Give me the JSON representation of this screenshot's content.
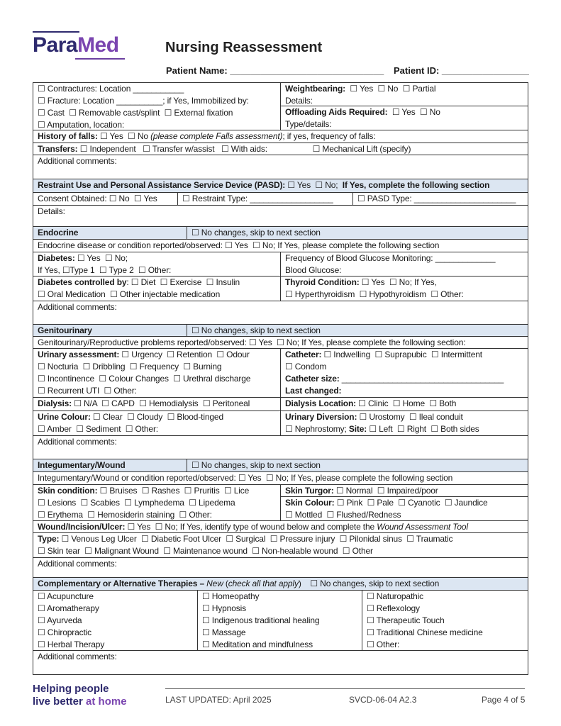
{
  "logo": {
    "part1": "Para",
    "part2": "Med"
  },
  "header": {
    "title": "Nursing Reassessment",
    "patient_name_label": "Patient Name: ",
    "patient_name_blank": "______________________________",
    "patient_id_label": "Patient ID: ",
    "patient_id_blank": "_________________"
  },
  "colors": {
    "header_bg": "#dce6f2",
    "brand_dark": "#2e2a6e",
    "brand_purple": "#7a45b0"
  },
  "cells": [
    {
      "lines": [
        [
          [
            "☐ Contractures: Location ___________",
            ""
          ]
        ],
        [
          [
            "☐ Fracture: Location __________; if Yes, Immobilized by:",
            ""
          ]
        ],
        [
          [
            "☐ Cast  ☐ Removable cast/splint  ☐ External fixation",
            ""
          ]
        ],
        [
          [
            "☐ Amputation, location:",
            ""
          ]
        ]
      ]
    },
    {
      "lines": [
        [
          [
            "Weightbearing:",
            "b"
          ],
          [
            "  ☐ Yes  ☐ No  ☐ Partial",
            ""
          ]
        ],
        [
          [
            "Details:",
            ""
          ]
        ]
      ]
    },
    {
      "lines": [
        [
          [
            "Offloading Aids Required:",
            "b"
          ],
          [
            "  ☐ Yes  ☐ No",
            ""
          ]
        ],
        [
          [
            "Type/details:",
            ""
          ]
        ]
      ]
    },
    {
      "lines": [
        [
          [
            "History of falls:",
            "b"
          ],
          [
            " ☐ Yes  ☐ No ",
            ""
          ],
          [
            "(please complete Falls assessment)",
            "i"
          ],
          [
            "; if yes, frequency of falls:",
            ""
          ]
        ]
      ]
    },
    {
      "lines": [
        [
          [
            "Transfers:",
            "b"
          ],
          [
            " ☐ Independent   ☐ Transfer w/assist   ☐ With aids:                    ☐ Mechanical Lift (specify)",
            ""
          ]
        ]
      ]
    },
    {
      "lines": [
        [
          [
            "Additional comments:",
            ""
          ]
        ]
      ]
    },
    {
      "lines": [
        [
          [
            "Restraint Use and Personal Assistance Service Device (PASD):",
            "b"
          ],
          [
            " ☐ Yes  ☐ No;  ",
            ""
          ],
          [
            "If Yes, complete the following section",
            "b"
          ]
        ]
      ]
    },
    {
      "lines": [
        [
          [
            "Consent Obtained: ☐ No  ☐ Yes",
            ""
          ]
        ]
      ]
    },
    {
      "lines": [
        [
          [
            "☐ Restraint Type: __________________",
            ""
          ]
        ]
      ]
    },
    {
      "lines": [
        [
          [
            "☐ PASD Type: ______________________",
            ""
          ]
        ]
      ]
    },
    {
      "lines": [
        [
          [
            "Details:",
            ""
          ]
        ]
      ]
    },
    {
      "lines": [
        [
          [
            "Endocrine",
            "b"
          ]
        ]
      ]
    },
    {
      "lines": [
        [
          [
            "☐ No changes, skip to next section",
            ""
          ]
        ]
      ]
    },
    {
      "lines": [
        [
          [
            "Endocrine disease or condition reported/observed: ☐ Yes  ☐ No; If Yes, please complete the following section",
            ""
          ]
        ]
      ]
    },
    {
      "lines": [
        [
          [
            "Diabetes:",
            "b"
          ],
          [
            " ☐ Yes  ☐ No;",
            ""
          ]
        ],
        [
          [
            "If Yes, ☐Type 1  ☐ Type 2  ☐ Other:",
            ""
          ]
        ]
      ]
    },
    {
      "lines": [
        [
          [
            "Frequency of Blood Glucose Monitoring: _____________",
            ""
          ]
        ],
        [
          [
            "Blood Glucose:",
            ""
          ]
        ]
      ]
    },
    {
      "lines": [
        [
          [
            "Diabetes controlled by",
            "b"
          ],
          [
            ": ☐ Diet  ☐ Exercise  ☐ Insulin",
            ""
          ]
        ],
        [
          [
            "☐ Oral Medication  ☐ Other injectable medication",
            ""
          ]
        ]
      ]
    },
    {
      "lines": [
        [
          [
            "Thyroid Condition:",
            "b"
          ],
          [
            " ☐ Yes  ☐ No; If Yes,",
            ""
          ]
        ],
        [
          [
            "☐ Hyperthyroidism  ☐ Hypothyroidism  ☐ Other:",
            ""
          ]
        ]
      ]
    },
    {
      "lines": [
        [
          [
            "Additional comments:",
            ""
          ]
        ]
      ]
    },
    {
      "lines": [
        [
          [
            "Genitourinary",
            "b"
          ]
        ]
      ]
    },
    {
      "lines": [
        [
          [
            "☐ No changes, skip to next section",
            ""
          ]
        ]
      ]
    },
    {
      "lines": [
        [
          [
            "Genitourinary/Reproductive problems reported/observed: ☐ Yes  ☐ No; If Yes, please complete the following section:",
            ""
          ]
        ]
      ]
    },
    {
      "lines": [
        [
          [
            "Urinary assessment:",
            "b"
          ],
          [
            " ☐ Urgency  ☐ Retention  ☐ Odour",
            ""
          ]
        ],
        [
          [
            "☐ Nocturia  ☐ Dribbling  ☐ Frequency  ☐ Burning",
            ""
          ]
        ],
        [
          [
            "☐ Incontinence  ☐ Colour Changes  ☐ Urethral discharge",
            ""
          ]
        ],
        [
          [
            "☐ Recurrent UTI  ☐ Other:",
            ""
          ]
        ]
      ]
    },
    {
      "lines": [
        [
          [
            "Catheter:",
            "b"
          ],
          [
            " ☐ Indwelling  ☐ Suprapubic  ☐ Intermittent",
            ""
          ]
        ],
        [
          [
            "☐ Condom",
            ""
          ]
        ],
        [
          [
            "Catheter size:",
            "b"
          ],
          [
            " ___________________________________",
            ""
          ]
        ],
        [
          [
            "Last changed:",
            "b"
          ]
        ]
      ]
    },
    {
      "lines": [
        [
          [
            "Dialysis:",
            "b"
          ],
          [
            " ☐ N/A  ☐ CAPD  ☐ Hemodialysis  ☐ Peritoneal",
            ""
          ]
        ]
      ]
    },
    {
      "lines": [
        [
          [
            "Dialysis Location:",
            "b"
          ],
          [
            " ☐ Clinic  ☐ Home  ☐ Both",
            ""
          ]
        ]
      ]
    },
    {
      "lines": [
        [
          [
            "Urine Colour:",
            "b"
          ],
          "",
          [
            " ☐ Clear  ☐ Cloudy  ☐ Blood-tinged",
            ""
          ]
        ],
        [
          [
            "☐ Amber  ☐ Sediment  ☐ Other:",
            ""
          ]
        ]
      ]
    },
    {
      "lines": [
        [
          [
            "Urinary Diversion:",
            "b"
          ],
          [
            " ☐ Urostomy  ☐ Ileal conduit",
            ""
          ]
        ],
        [
          [
            "☐ Nephrostomy; ",
            ""
          ],
          [
            "Site:",
            "b"
          ],
          [
            " ☐ Left  ☐ Right  ☐ Both sides",
            ""
          ]
        ]
      ]
    },
    {
      "lines": [
        [
          [
            "Additional comments:",
            ""
          ]
        ]
      ]
    },
    {
      "lines": [
        [
          [
            "Integumentary/Wound",
            "b"
          ]
        ]
      ]
    },
    {
      "lines": [
        [
          [
            "☐ No changes, skip to next section",
            ""
          ]
        ]
      ]
    },
    {
      "lines": [
        [
          [
            "Integumentary/Wound or condition reported/observed: ☐ Yes  ☐ No; If Yes, please complete the following section",
            ""
          ]
        ]
      ]
    },
    {
      "lines": [
        [
          [
            "Skin condition:",
            "b"
          ],
          [
            " ☐ Bruises  ☐ Rashes  ☐ Pruritis  ☐ Lice",
            ""
          ]
        ],
        [
          [
            "☐ Lesions  ☐ Scabies  ☐ Lymphedema  ☐ Lipedema",
            ""
          ]
        ],
        [
          [
            "☐ Erythema  ☐ Hemosiderin staining  ☐ Other:",
            ""
          ]
        ]
      ]
    },
    {
      "lines": [
        [
          [
            "Skin Turgor:",
            "b"
          ],
          [
            " ☐ Normal  ☐ Impaired/poor",
            ""
          ]
        ]
      ]
    },
    {
      "lines": [
        [
          [
            "Skin Colour:",
            "b"
          ],
          [
            " ☐ Pink  ☐ Pale  ☐ Cyanotic  ☐ Jaundice",
            ""
          ]
        ],
        [
          [
            "☐ Mottled  ☐ Flushed/Redness",
            ""
          ]
        ]
      ]
    },
    {
      "lines": [
        [
          [
            "Wound/Incision/Ulcer:",
            "b"
          ],
          [
            " ☐ Yes  ☐ No; If Yes, identify type of wound below and complete the ",
            ""
          ],
          [
            "Wound Assessment Tool",
            "i"
          ]
        ]
      ]
    },
    {
      "lines": [
        [
          [
            "Type:",
            "b"
          ],
          [
            " ☐ Venous Leg Ulcer  ☐ Diabetic Foot Ulcer  ☐ Surgical  ☐ Pressure injury  ☐ Pilonidal sinus  ☐ Traumatic",
            ""
          ]
        ],
        [
          [
            "☐ Skin tear  ☐ Malignant Wound  ☐ Maintenance wound  ☐ Non-healable wound  ☐ Other",
            ""
          ]
        ]
      ]
    },
    {
      "lines": [
        [
          [
            "Additional comments:",
            ""
          ]
        ]
      ]
    },
    {
      "lines": [
        [
          [
            "Complementary or Alternative Therapies – ",
            "b"
          ],
          [
            "New",
            "i"
          ],
          [
            " (",
            ""
          ],
          [
            "check all that apply",
            "i"
          ],
          [
            ")    ☐ No changes, skip to next section",
            ""
          ]
        ]
      ]
    },
    {
      "lines": [
        [
          [
            "☐ Acupuncture",
            ""
          ]
        ],
        [
          [
            "☐ Aromatherapy",
            ""
          ]
        ],
        [
          [
            "☐ Ayurveda",
            ""
          ]
        ],
        [
          [
            "☐ Chiropractic",
            ""
          ]
        ],
        [
          [
            "☐ Herbal Therapy",
            ""
          ]
        ]
      ]
    },
    {
      "lines": [
        [
          [
            "☐ Homeopathy",
            ""
          ]
        ],
        [
          [
            "☐ Hypnosis",
            ""
          ]
        ],
        [
          [
            "☐ Indigenous traditional healing",
            ""
          ]
        ],
        [
          [
            "☐ Massage",
            ""
          ]
        ],
        [
          [
            "☐ Meditation and mindfulness",
            ""
          ]
        ]
      ]
    },
    {
      "lines": [
        [
          [
            "☐ Naturopathic",
            ""
          ]
        ],
        [
          [
            "☐ Reflexology",
            ""
          ]
        ],
        [
          [
            "☐ Therapeutic Touch",
            ""
          ]
        ],
        [
          [
            "☐ Traditional Chinese medicine",
            ""
          ]
        ],
        [
          [
            "☐ Other:",
            ""
          ]
        ]
      ]
    },
    {
      "lines": [
        [
          [
            "Additional comments:",
            ""
          ]
        ]
      ]
    }
  ],
  "footer": {
    "tagline_line1": "Helping people",
    "tagline_line2a": "live better ",
    "tagline_line2b": "at home",
    "last_updated": "LAST UPDATED: April 2025",
    "doc_code": "SVCD-06-04 A2.3",
    "page": "Page 4 of 5"
  }
}
